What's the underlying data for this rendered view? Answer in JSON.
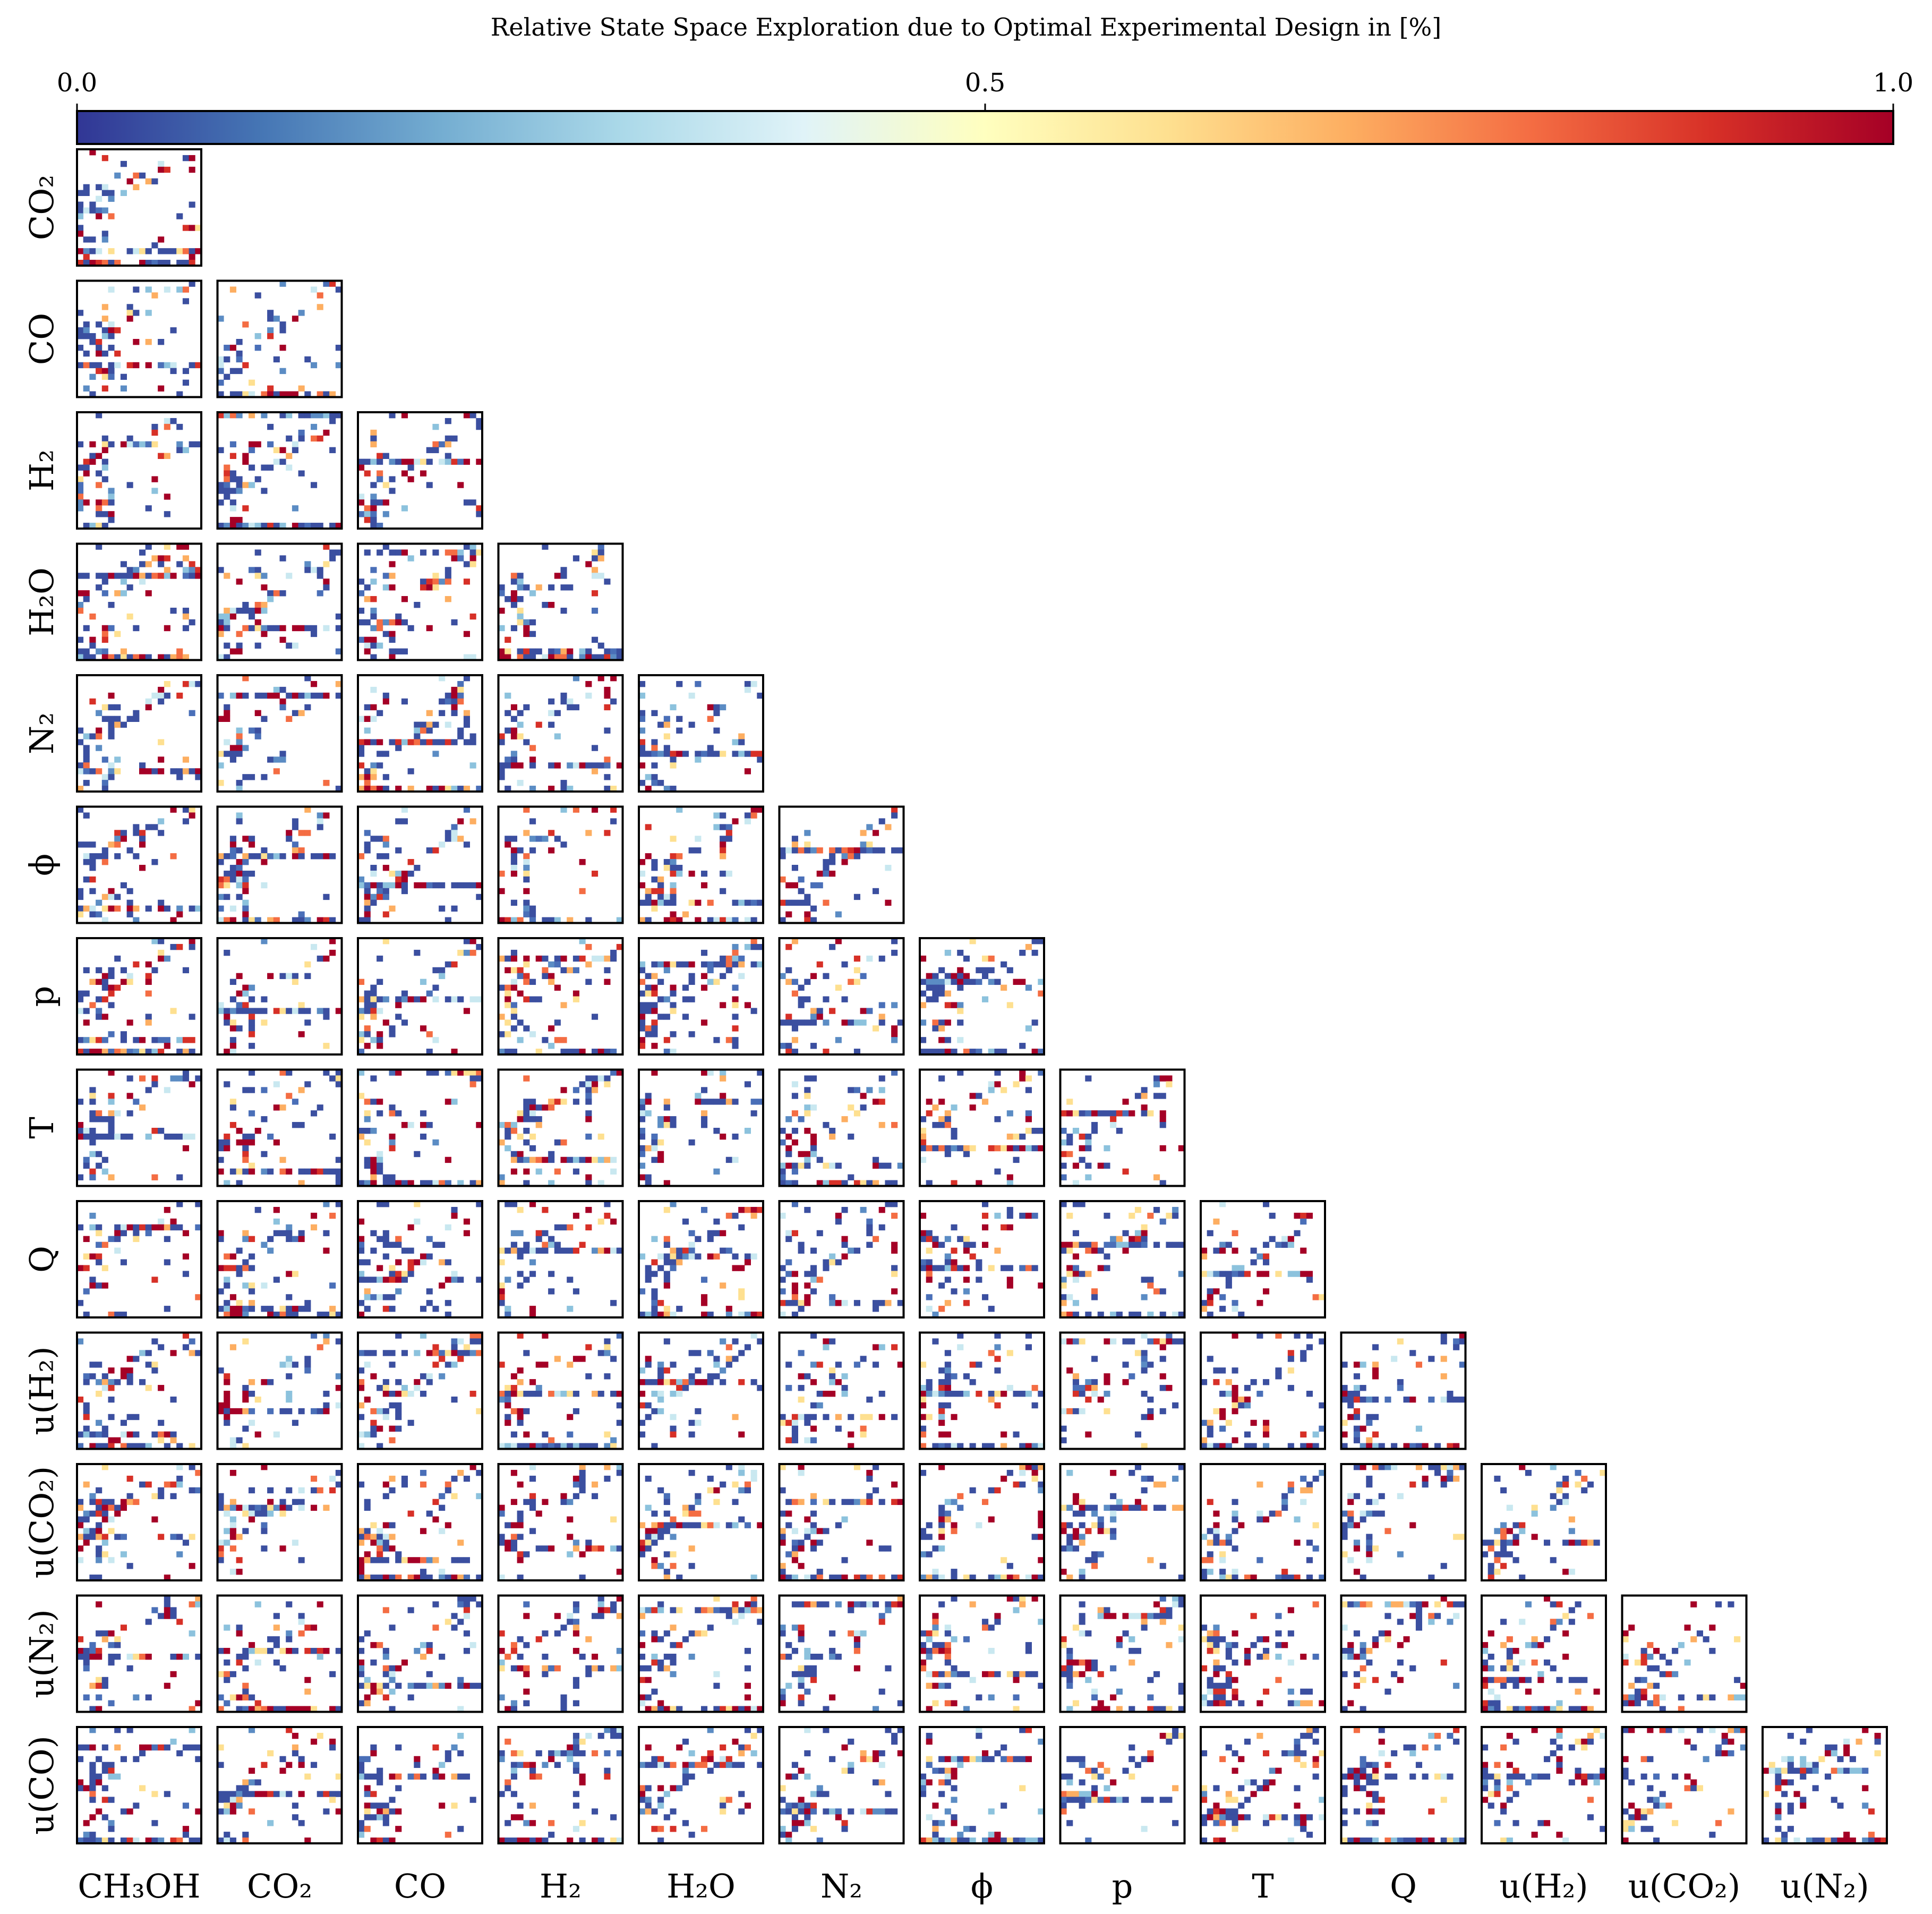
{
  "chart_data": {
    "type": "heatmap",
    "layout": "lower-triangular pairwise grid (corner plot)",
    "title": "Relative State Space Exploration due to Optimal Experimental Design in [%]",
    "colorbar": {
      "orientation": "horizontal",
      "position": "top",
      "colormap": "RdYlBu_r",
      "range": [
        0.0,
        1.0
      ],
      "ticks": [
        "0.0",
        "0.5",
        "1.0"
      ],
      "colors": [
        "#313695",
        "#4575b4",
        "#74add1",
        "#abd9e9",
        "#e0f3f8",
        "#ffffbf",
        "#fee090",
        "#fdae61",
        "#f46d43",
        "#d73027",
        "#a50026"
      ]
    },
    "x_labels": [
      "CH₃OH",
      "CO₂",
      "CO",
      "H₂",
      "H₂O",
      "N₂",
      "ϕ",
      "p",
      "T",
      "Q",
      "u(H₂)",
      "u(CO₂)",
      "u(N₂)"
    ],
    "y_labels": [
      "CO₂",
      "CO",
      "H₂",
      "H₂O",
      "N₂",
      "ϕ",
      "p",
      "T",
      "Q",
      "u(H₂)",
      "u(CO₂)",
      "u(N₂)",
      "u(CO)"
    ],
    "grid_resolution": 20,
    "panel_count": 91,
    "cell_value_note": "per-cell values range 0.0–1.0; mostly 0.0–0.1 (dark blue) with scattered cells near 1.0 (dark red); empty cells are white"
  }
}
